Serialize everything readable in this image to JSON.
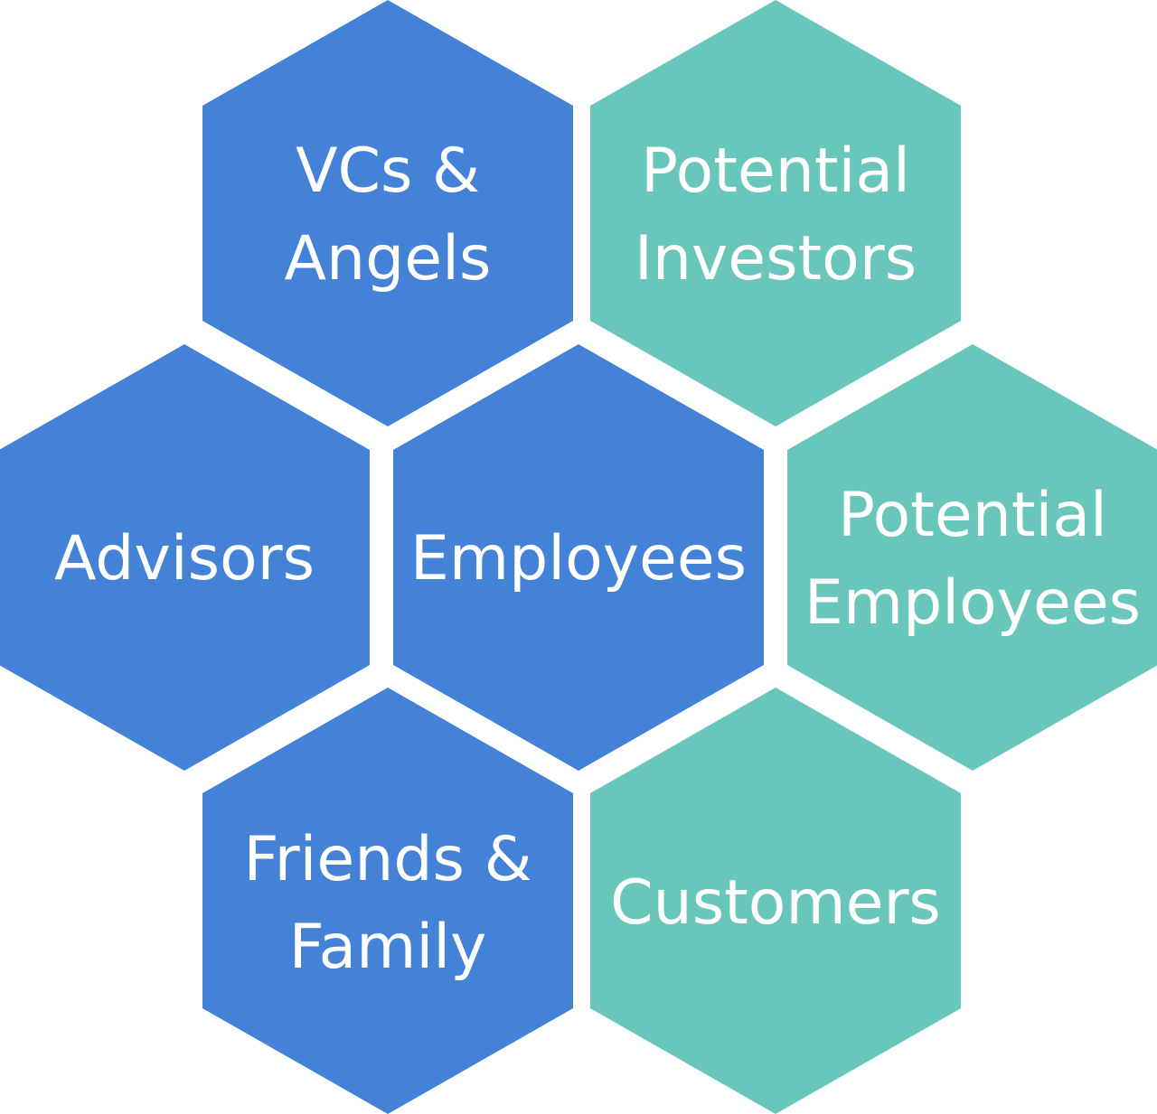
{
  "colors": {
    "blue": "#4382d7",
    "teal": "#68c6bb",
    "label": "#ffffff",
    "background": "#ffffff"
  },
  "hexes": [
    {
      "id": "vcs-angels",
      "color": "blue",
      "lines": [
        "VCs &",
        "Angels"
      ]
    },
    {
      "id": "potential-investors",
      "color": "teal",
      "lines": [
        "Potential",
        "Investors"
      ]
    },
    {
      "id": "advisors",
      "color": "blue",
      "lines": [
        "Advisors"
      ]
    },
    {
      "id": "employees",
      "color": "blue",
      "lines": [
        "Employees"
      ]
    },
    {
      "id": "potential-employees",
      "color": "teal",
      "lines": [
        "Potential",
        "Employees"
      ]
    },
    {
      "id": "friends-family",
      "color": "blue",
      "lines": [
        "Friends &",
        "Family"
      ]
    },
    {
      "id": "customers",
      "color": "teal",
      "lines": [
        "Customers"
      ]
    }
  ]
}
